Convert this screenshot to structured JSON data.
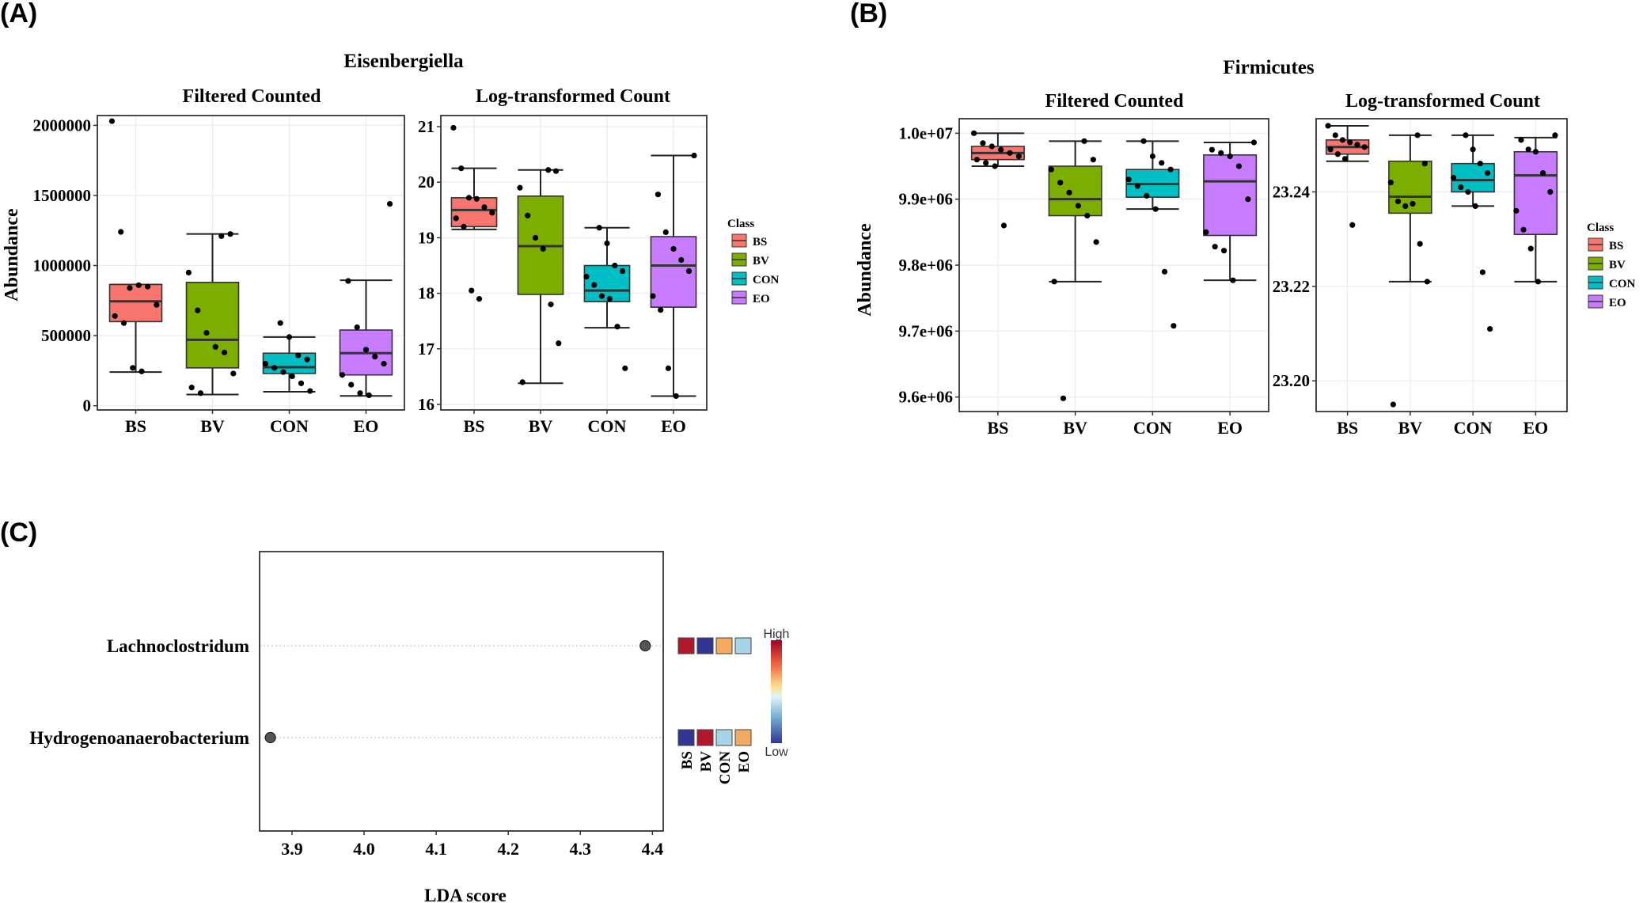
{
  "panel_labels": {
    "a": "(A)",
    "b": "(B)",
    "c": "(C)"
  },
  "class_colors": {
    "BS": "#F8766D",
    "BV": "#7CAE00",
    "CON": "#00BFC4",
    "EO": "#C77CFF"
  },
  "chart_data": [
    {
      "type": "box",
      "id": "A-filtered",
      "title": "Eisenbergiella",
      "subtitle": "Filtered Counted",
      "ylabel": "Abundance",
      "categories": [
        "BS",
        "BV",
        "CON",
        "EO"
      ],
      "ylim": [
        -30000,
        2070000
      ],
      "yticks": [
        0,
        500000,
        1000000,
        1500000,
        2000000
      ],
      "ytick_labels": [
        "0",
        "500000",
        "1000000",
        "1500000",
        "2000000"
      ],
      "boxes": [
        {
          "class": "BS",
          "min": 240000,
          "q1": 600000,
          "median": 745000,
          "q3": 865000,
          "max": 865000
        },
        {
          "class": "BV",
          "min": 80000,
          "q1": 270000,
          "median": 470000,
          "q3": 880000,
          "max": 1225000
        },
        {
          "class": "CON",
          "min": 100000,
          "q1": 230000,
          "median": 275000,
          "q3": 375000,
          "max": 490000
        },
        {
          "class": "EO",
          "min": 70000,
          "q1": 220000,
          "median": 375000,
          "q3": 540000,
          "max": 895000
        }
      ],
      "points": [
        {
          "class": "BS",
          "values": [
            2030000,
            1240000,
            840000,
            860000,
            850000,
            720000,
            640000,
            590000,
            270000,
            245000
          ]
        },
        {
          "class": "BV",
          "values": [
            1210000,
            1225000,
            950000,
            680000,
            520000,
            420000,
            380000,
            230000,
            130000,
            90000
          ]
        },
        {
          "class": "CON",
          "values": [
            590000,
            490000,
            360000,
            330000,
            300000,
            270000,
            240000,
            210000,
            160000,
            105000
          ]
        },
        {
          "class": "EO",
          "values": [
            1440000,
            890000,
            560000,
            400000,
            350000,
            300000,
            220000,
            150000,
            90000,
            75000
          ]
        }
      ]
    },
    {
      "type": "box",
      "id": "A-log",
      "subtitle": "Log-transformed Count",
      "categories": [
        "BS",
        "BV",
        "CON",
        "EO"
      ],
      "ylim": [
        15.9,
        21.2
      ],
      "yticks": [
        16,
        17,
        18,
        19,
        20,
        21
      ],
      "ytick_labels": [
        "16",
        "17",
        "18",
        "19",
        "20",
        "21"
      ],
      "boxes": [
        {
          "class": "BS",
          "min": 19.15,
          "q1": 19.2,
          "median": 19.5,
          "q3": 19.72,
          "max": 20.25
        },
        {
          "class": "BV",
          "min": 16.38,
          "q1": 17.98,
          "median": 18.85,
          "q3": 19.75,
          "max": 20.22
        },
        {
          "class": "CON",
          "min": 17.38,
          "q1": 17.85,
          "median": 18.05,
          "q3": 18.5,
          "max": 19.18
        },
        {
          "class": "EO",
          "min": 16.15,
          "q1": 17.75,
          "median": 18.5,
          "q3": 19.02,
          "max": 20.48
        }
      ],
      "points": [
        {
          "class": "BS",
          "values": [
            20.98,
            20.25,
            19.72,
            19.7,
            19.55,
            19.45,
            19.35,
            19.2,
            18.05,
            17.9
          ]
        },
        {
          "class": "BV",
          "values": [
            20.22,
            20.2,
            19.9,
            19.4,
            19.0,
            18.8,
            17.8,
            17.1,
            16.4
          ]
        },
        {
          "class": "CON",
          "values": [
            19.18,
            18.9,
            18.5,
            18.4,
            18.3,
            18.15,
            17.95,
            17.9,
            17.4,
            16.65
          ]
        },
        {
          "class": "EO",
          "values": [
            20.48,
            19.78,
            19.1,
            18.8,
            18.6,
            18.4,
            17.95,
            17.7,
            16.65,
            16.15
          ]
        }
      ],
      "legend": {
        "title": "Class",
        "entries": [
          "BS",
          "BV",
          "CON",
          "EO"
        ]
      }
    },
    {
      "type": "box",
      "id": "B-filtered",
      "title": "Firmicutes",
      "subtitle": "Filtered Counted",
      "ylabel": "Abundance",
      "categories": [
        "BS",
        "BV",
        "CON",
        "EO"
      ],
      "ylim": [
        9578000,
        10022000
      ],
      "yticks": [
        9600000,
        9700000,
        9800000,
        9900000,
        10000000
      ],
      "ytick_labels": [
        "9.6e+06",
        "9.7e+06",
        "9.8e+06",
        "9.9e+06",
        "1.0e+07"
      ],
      "boxes": [
        {
          "class": "BS",
          "min": 9950000,
          "q1": 9960000,
          "median": 9970000,
          "q3": 9980000,
          "max": 10000000
        },
        {
          "class": "BV",
          "min": 9775000,
          "q1": 9875000,
          "median": 9900000,
          "q3": 9950000,
          "max": 9988000
        },
        {
          "class": "CON",
          "min": 9885000,
          "q1": 9903000,
          "median": 9923000,
          "q3": 9945000,
          "max": 9988000
        },
        {
          "class": "EO",
          "min": 9777000,
          "q1": 9845000,
          "median": 9927000,
          "q3": 9967000,
          "max": 9986000
        }
      ],
      "points": [
        {
          "class": "BS",
          "values": [
            10000000,
            9985000,
            9980000,
            9975000,
            9970000,
            9965000,
            9960000,
            9955000,
            9950000,
            9860000
          ]
        },
        {
          "class": "BV",
          "values": [
            9988000,
            9960000,
            9945000,
            9925000,
            9910000,
            9890000,
            9875000,
            9835000,
            9775000,
            9598000
          ]
        },
        {
          "class": "CON",
          "values": [
            9988000,
            9965000,
            9955000,
            9945000,
            9930000,
            9920000,
            9905000,
            9885000,
            9790000,
            9708000
          ]
        },
        {
          "class": "EO",
          "values": [
            9986000,
            9975000,
            9970000,
            9965000,
            9950000,
            9900000,
            9850000,
            9828000,
            9822000,
            9777000
          ]
        }
      ]
    },
    {
      "type": "box",
      "id": "B-log",
      "subtitle": "Log-transformed Count",
      "categories": [
        "BS",
        "BV",
        "CON",
        "EO"
      ],
      "ylim": [
        23.1935,
        23.2555
      ],
      "yticks": [
        23.2,
        23.22,
        23.24
      ],
      "ytick_labels": [
        "23.20",
        "23.22",
        "23.24"
      ],
      "boxes": [
        {
          "class": "BS",
          "min": 23.2465,
          "q1": 23.248,
          "median": 23.2495,
          "q3": 23.251,
          "max": 23.254
        },
        {
          "class": "BV",
          "min": 23.221,
          "q1": 23.2355,
          "median": 23.239,
          "q3": 23.2465,
          "max": 23.252
        },
        {
          "class": "CON",
          "min": 23.237,
          "q1": 23.24,
          "median": 23.2425,
          "q3": 23.246,
          "max": 23.252
        },
        {
          "class": "EO",
          "min": 23.221,
          "q1": 23.231,
          "median": 23.2435,
          "q3": 23.2485,
          "max": 23.2515
        }
      ],
      "points": [
        {
          "class": "BS",
          "values": [
            23.254,
            23.252,
            23.251,
            23.2505,
            23.25,
            23.2495,
            23.249,
            23.248,
            23.247,
            23.233
          ]
        },
        {
          "class": "BV",
          "values": [
            23.252,
            23.246,
            23.242,
            23.238,
            23.237,
            23.2375,
            23.229,
            23.221,
            23.195
          ]
        },
        {
          "class": "CON",
          "values": [
            23.252,
            23.249,
            23.246,
            23.244,
            23.243,
            23.241,
            23.24,
            23.237,
            23.223,
            23.211
          ]
        },
        {
          "class": "EO",
          "values": [
            23.252,
            23.251,
            23.249,
            23.2485,
            23.244,
            23.24,
            23.236,
            23.232,
            23.228,
            23.221
          ]
        }
      ],
      "legend": {
        "title": "Class",
        "entries": [
          "BS",
          "BV",
          "CON",
          "EO"
        ]
      }
    },
    {
      "type": "scatter",
      "id": "C-lda",
      "xlabel": "LDA score",
      "xlim": [
        3.855,
        4.415
      ],
      "xticks": [
        3.9,
        4.0,
        4.1,
        4.2,
        4.3,
        4.4
      ],
      "xtick_labels": [
        "3.9",
        "4.0",
        "4.1",
        "4.2",
        "4.3",
        "4.4"
      ],
      "features": [
        {
          "name": "Lachnoclostridum",
          "lda": 4.39,
          "relative": {
            "BS": "high",
            "BV": "low",
            "CON": "mid-high",
            "EO": "mid-low"
          }
        },
        {
          "name": "Hydrogenoanaerobacterium",
          "lda": 3.87,
          "relative": {
            "BS": "low",
            "BV": "high",
            "CON": "mid-low",
            "EO": "mid-high"
          }
        }
      ],
      "heat_columns": [
        "BS",
        "BV",
        "CON",
        "EO"
      ],
      "heat_colors": {
        "high": "#B2182B",
        "mid-high": "#F4A960",
        "mid-low": "#A6D3E5",
        "low": "#313695"
      },
      "colorbar": {
        "high_label": "High",
        "low_label": "Low"
      }
    }
  ]
}
